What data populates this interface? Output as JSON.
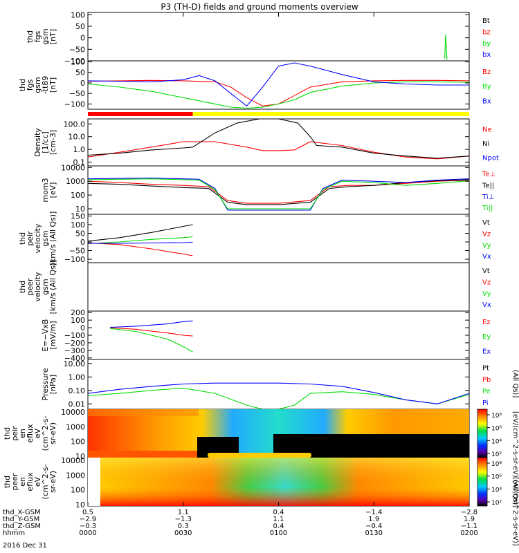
{
  "title": "P3 (TH-D) fields and ground moments overview",
  "date_label": "2016 Dec 31",
  "chart_data": [
    {
      "type": "line",
      "ylabel": [
        "thd",
        "fgs",
        "gsm",
        "[nT]"
      ],
      "ticks": [
        "100",
        "50",
        "0",
        "−50",
        "−100"
      ],
      "tick_values": [
        100,
        50,
        0,
        -50,
        -100
      ],
      "ylim": [
        -100,
        110
      ],
      "legend": [
        {
          "name": "Bt",
          "color": "#000000"
        },
        {
          "name": "bz",
          "color": "#ff0000"
        },
        {
          "name": "by",
          "color": "#00dd00"
        },
        {
          "name": "bx",
          "color": "#0000ff"
        }
      ],
      "series": [
        {
          "name": "by",
          "color": "#00dd00",
          "x": [
            0.5,
            112.0,
            112.3,
            112.6,
            113.0,
            120.0
          ],
          "y": [
            null,
            null,
            -90,
            15,
            -95,
            null
          ]
        }
      ]
    },
    {
      "type": "line",
      "ylabel": [
        "thd",
        "fgs",
        "gsm",
        "-tt89",
        "[nT]"
      ],
      "ticks": [
        "100",
        "50",
        "0",
        "−50",
        "−100"
      ],
      "tick_values": [
        100,
        50,
        0,
        -50,
        -100
      ],
      "ylim": [
        -125,
        105
      ],
      "legend": [
        {
          "name": "Bz",
          "color": "#ff0000"
        },
        {
          "name": "By",
          "color": "#00dd00"
        },
        {
          "name": "Bx",
          "color": "#0000ff"
        }
      ],
      "series": [
        {
          "name": "Bz",
          "color": "#ff0000",
          "x": [
            0,
            10,
            20,
            30,
            40,
            45,
            50,
            55,
            60,
            65,
            70,
            80,
            90,
            100,
            110,
            120
          ],
          "y": [
            8,
            10,
            12,
            10,
            5,
            -20,
            -70,
            -110,
            -100,
            -60,
            -20,
            5,
            10,
            12,
            12,
            10
          ]
        },
        {
          "name": "By",
          "color": "#00dd00",
          "x": [
            0,
            10,
            20,
            30,
            40,
            45,
            50,
            55,
            60,
            65,
            70,
            80,
            90,
            100,
            110,
            120
          ],
          "y": [
            -5,
            -20,
            -40,
            -70,
            -100,
            -115,
            -120,
            -115,
            -100,
            -80,
            -45,
            -15,
            0,
            5,
            5,
            3
          ]
        },
        {
          "name": "Bx",
          "color": "#0000ff",
          "x": [
            0,
            10,
            20,
            30,
            35,
            40,
            45,
            50,
            55,
            60,
            65,
            70,
            80,
            90,
            100,
            110,
            120
          ],
          "y": [
            10,
            8,
            5,
            15,
            35,
            10,
            -50,
            -110,
            -20,
            80,
            95,
            80,
            40,
            5,
            -5,
            -10,
            -10
          ]
        }
      ]
    },
    {
      "type": "line",
      "scale": "log",
      "ylabel": [
        "Density",
        "[1/cc]",
        "[cm-3]"
      ],
      "ticks": [
        "100.0",
        "10.0",
        "1.0",
        "0.1"
      ],
      "tick_values": [
        100,
        10,
        1,
        0.1
      ],
      "ylim": [
        0.05,
        250
      ],
      "legend": [
        {
          "name": "Ne",
          "color": "#ff0000"
        },
        {
          "name": "Ni",
          "color": "#000000"
        },
        {
          "name": "Npot",
          "color": "#0000ff"
        }
      ],
      "series": [
        {
          "name": "Ne",
          "color": "#ff0000",
          "x": [
            0,
            10,
            20,
            30,
            40,
            50,
            55,
            60,
            65,
            70,
            80,
            90,
            100,
            110,
            120
          ],
          "y": [
            0.25,
            0.6,
            1.5,
            4,
            4,
            1.5,
            0.8,
            0.8,
            0.9,
            4,
            2,
            0.6,
            0.25,
            0.18,
            0.3
          ]
        },
        {
          "name": "Ni",
          "color": "#000000",
          "x": [
            0,
            10,
            20,
            30,
            33,
            40,
            47,
            54,
            60,
            66,
            70,
            72,
            80,
            90,
            100,
            110,
            120
          ],
          "y": [
            0.35,
            0.5,
            0.9,
            1.3,
            1.5,
            20,
            120,
            250,
            250,
            120,
            10,
            2,
            1.5,
            0.5,
            0.3,
            0.2,
            0.3
          ]
        }
      ]
    },
    {
      "type": "line",
      "scale": "log",
      "ylabel": [
        "mom3",
        "[eV]"
      ],
      "ticks": [
        "10000",
        "1000",
        "100",
        "10"
      ],
      "tick_values": [
        10000,
        1000,
        100,
        10
      ],
      "ylim": [
        4,
        13000
      ],
      "legend": [
        {
          "name": "Te⊥",
          "color": "#ff0000"
        },
        {
          "name": "Te||",
          "color": "#000000"
        },
        {
          "name": "Ti⊥",
          "color": "#0000ff"
        },
        {
          "name": "Ti||",
          "color": "#00dd00"
        }
      ],
      "series": [
        {
          "name": "Te⊥",
          "color": "#ff0000",
          "x": [
            0,
            10,
            20,
            30,
            38,
            44,
            50,
            60,
            70,
            76,
            82,
            90,
            100,
            110,
            120
          ],
          "y": [
            1000,
            800,
            600,
            500,
            400,
            40,
            25,
            25,
            40,
            400,
            500,
            500,
            700,
            1000,
            1200
          ]
        },
        {
          "name": "Te||",
          "color": "#000000",
          "x": [
            0,
            10,
            20,
            30,
            38,
            44,
            50,
            60,
            70,
            76,
            82,
            90,
            100,
            110,
            120
          ],
          "y": [
            700,
            600,
            450,
            350,
            300,
            30,
            20,
            20,
            30,
            300,
            400,
            500,
            800,
            1100,
            1300
          ]
        },
        {
          "name": "Ti⊥",
          "color": "#0000ff",
          "x": [
            0,
            10,
            20,
            30,
            35,
            40,
            44,
            60,
            70,
            74,
            80,
            90,
            100,
            110,
            120
          ],
          "y": [
            1500,
            1600,
            1700,
            1500,
            1400,
            300,
            8,
            8,
            8,
            300,
            1200,
            1000,
            800,
            1200,
            1500
          ]
        },
        {
          "name": "Ti||",
          "color": "#00dd00",
          "x": [
            0,
            10,
            20,
            30,
            35,
            40,
            44,
            60,
            70,
            74,
            80,
            90,
            100,
            110,
            120
          ],
          "y": [
            1300,
            1400,
            1500,
            1300,
            1200,
            250,
            10,
            10,
            10,
            250,
            1000,
            800,
            500,
            700,
            1100
          ]
        }
      ]
    },
    {
      "type": "line",
      "ylabel": [
        "thd",
        "peir",
        "velocity",
        "gsm",
        "[km/s (All Qs)]"
      ],
      "ticks": [
        "150",
        "100",
        "50",
        "0",
        "−50",
        "−100"
      ],
      "tick_values": [
        150,
        100,
        50,
        0,
        -50,
        -100
      ],
      "ylim": [
        -120,
        160
      ],
      "legend": [
        {
          "name": "Vt",
          "color": "#000000"
        },
        {
          "name": "Vz",
          "color": "#ff0000"
        },
        {
          "name": "Vy",
          "color": "#00dd00"
        },
        {
          "name": "Vx",
          "color": "#0000ff"
        }
      ],
      "series": [
        {
          "name": "Vt",
          "color": "#000000",
          "x": [
            0,
            10,
            20,
            30,
            33
          ],
          "y": [
            5,
            25,
            55,
            90,
            100
          ]
        },
        {
          "name": "Vz",
          "color": "#ff0000",
          "x": [
            0,
            10,
            20,
            30,
            33
          ],
          "y": [
            -5,
            -15,
            -40,
            -70,
            -80
          ]
        },
        {
          "name": "Vy",
          "color": "#00dd00",
          "x": [
            0,
            10,
            20,
            30,
            33
          ],
          "y": [
            -10,
            0,
            15,
            25,
            30
          ]
        },
        {
          "name": "Vx",
          "color": "#0000ff",
          "x": [
            0,
            10,
            20,
            30,
            33
          ],
          "y": [
            -8,
            -8,
            -6,
            -4,
            -2
          ]
        }
      ]
    },
    {
      "type": "line",
      "ylabel": [
        "thd",
        "peer",
        "velocity",
        "gsm",
        "[km/s (All Qs)]"
      ],
      "ticks": [],
      "tick_values": [],
      "ylim": [
        0,
        1
      ],
      "legend": [
        {
          "name": "Vt",
          "color": "#000000"
        },
        {
          "name": "Vz",
          "color": "#ff0000"
        },
        {
          "name": "Vy",
          "color": "#00dd00"
        },
        {
          "name": "Vx",
          "color": "#0000ff"
        }
      ],
      "series": []
    },
    {
      "type": "line",
      "ylabel": [
        "E=−VxB",
        "[mV/m]"
      ],
      "ticks": [
        "200",
        "100",
        "0",
        "−100",
        "−200",
        "−300",
        "−400"
      ],
      "tick_values": [
        200,
        100,
        0,
        -100,
        -200,
        -300,
        -400
      ],
      "ylim": [
        -420,
        220
      ],
      "legend": [
        {
          "name": "Ez",
          "color": "#ff0000"
        },
        {
          "name": "Ey",
          "color": "#00dd00"
        },
        {
          "name": "Ex",
          "color": "#0000ff"
        }
      ],
      "series": [
        {
          "name": "Ez",
          "color": "#ff0000",
          "x": [
            7,
            15,
            25,
            30,
            33
          ],
          "y": [
            0,
            -20,
            -70,
            -100,
            -110
          ]
        },
        {
          "name": "Ey",
          "color": "#00dd00",
          "x": [
            7,
            15,
            25,
            30,
            33
          ],
          "y": [
            -10,
            -50,
            -150,
            -250,
            -320
          ]
        },
        {
          "name": "Ex",
          "color": "#0000ff",
          "x": [
            7,
            15,
            25,
            30,
            33
          ],
          "y": [
            5,
            20,
            50,
            80,
            90
          ]
        }
      ]
    },
    {
      "type": "line",
      "scale": "log",
      "ylabel": [
        "Pressure",
        "[nPa]"
      ],
      "ticks": [
        "10.00",
        "1.00",
        "0.10",
        "0.01"
      ],
      "tick_values": [
        10,
        1,
        0.1,
        0.01
      ],
      "ylim": [
        0.004,
        20
      ],
      "legend": [
        {
          "name": "Pt",
          "color": "#000000"
        },
        {
          "name": "Pb",
          "color": "#ff0000"
        },
        {
          "name": "Pe",
          "color": "#00dd00"
        },
        {
          "name": "Pi",
          "color": "#0000ff"
        }
      ],
      "series": [
        {
          "name": "Pe",
          "color": "#00dd00",
          "x": [
            0,
            10,
            20,
            30,
            40,
            50,
            55,
            60,
            65,
            70,
            80,
            90,
            100,
            110,
            120
          ],
          "y": [
            0.04,
            0.06,
            0.1,
            0.15,
            0.06,
            0.008,
            0.004,
            0.004,
            0.008,
            0.06,
            0.08,
            0.05,
            0.02,
            0.01,
            0.05
          ]
        },
        {
          "name": "Pi",
          "color": "#0000ff",
          "x": [
            0,
            10,
            20,
            30,
            40,
            50,
            60,
            70,
            80,
            90,
            100,
            110,
            120
          ],
          "y": [
            0.06,
            0.12,
            0.2,
            0.3,
            0.35,
            0.35,
            0.35,
            0.3,
            0.2,
            0.07,
            0.02,
            0.01,
            0.06
          ]
        }
      ]
    },
    {
      "type": "heatmap",
      "ylabel": [
        "thd",
        "peir",
        "en",
        "eflux",
        "eV",
        "(cm^2-s-",
        "sr-eV)"
      ],
      "ticks": [
        "10000",
        "1000",
        "100",
        "10"
      ],
      "tick_values": [
        10000,
        1000,
        100,
        10
      ]
    },
    {
      "type": "heatmap",
      "ylabel": [
        "thd",
        "peer",
        "en",
        "eflux",
        "eV",
        "(cm^2-s-",
        "sr-eV)"
      ],
      "ticks": [
        "10000",
        "1000",
        "100",
        "10"
      ],
      "tick_values": [
        10000,
        1000,
        100,
        10
      ]
    }
  ],
  "colorbar": {
    "label": "[eV/(cm^2-s-sr-eV)]",
    "upper_ticks": [
      "10⁸",
      "10⁶",
      "10⁴",
      "10²"
    ],
    "lower_ticks": [
      "10⁸",
      "10⁶",
      "10⁴",
      "10²"
    ],
    "right_label_top": "[eV/(cm^2-s-sr-eV) (All Qs)]",
    "right_label_bottom": "[eV/(cm^2-s-sr-eV)]"
  },
  "right_pressure_label": "(All Qs)]",
  "x_axis": {
    "labels": [
      "thd_X-GSM",
      "thd_Y-GSM",
      "thd_Z-GSM",
      "hhmm"
    ],
    "columns": [
      {
        "t": 0,
        "vals": [
          "0.5",
          "−2.9",
          "−0.3",
          "0000"
        ]
      },
      {
        "t": 30,
        "vals": [
          "1.1",
          "−1.3",
          "0.3",
          "0030"
        ]
      },
      {
        "t": 60,
        "vals": [
          "0.4",
          "1.1",
          "0.4",
          "0100"
        ]
      },
      {
        "t": 90,
        "vals": [
          "−1.4",
          "1.9",
          "−0.4",
          "0130"
        ]
      },
      {
        "t": 120,
        "vals": [
          "−2.8",
          "1.9",
          "−1.1",
          "0200"
        ]
      }
    ]
  },
  "status_bar": {
    "segments": [
      {
        "from": 0,
        "to": 33,
        "color": "#ff0000"
      },
      {
        "from": 33,
        "to": 120,
        "color": "#ffff00"
      }
    ]
  }
}
